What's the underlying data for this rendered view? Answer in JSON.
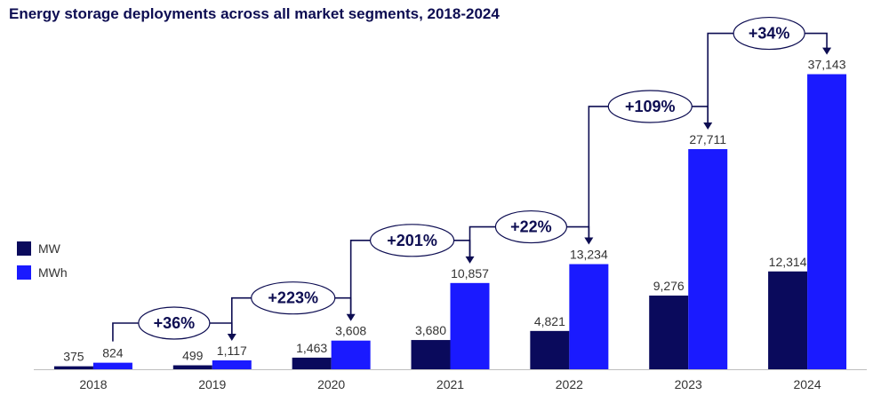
{
  "chart_data": {
    "type": "bar",
    "title": "Energy storage deployments across all market segments, 2018-2024",
    "categories": [
      "2018",
      "2019",
      "2020",
      "2021",
      "2022",
      "2023",
      "2024"
    ],
    "series": [
      {
        "name": "MW",
        "color": "#0a0a5c",
        "values": [
          375,
          499,
          1463,
          3680,
          4821,
          9276,
          12314
        ],
        "labels": [
          "375",
          "499",
          "1,463",
          "3,680",
          "4,821",
          "9,276",
          "12,314"
        ]
      },
      {
        "name": "MWh",
        "color": "#1a1aff",
        "values": [
          824,
          1117,
          3608,
          10857,
          13234,
          27711,
          37143
        ],
        "labels": [
          "824",
          "1,117",
          "3,608",
          "10,857",
          "13,234",
          "27,711",
          "37,143"
        ]
      }
    ],
    "ylim": [
      0,
      40000
    ],
    "annotations": [
      {
        "from": "2018",
        "to": "2019",
        "text": "+36%"
      },
      {
        "from": "2019",
        "to": "2020",
        "text": "+223%"
      },
      {
        "from": "2020",
        "to": "2021",
        "text": "+201%"
      },
      {
        "from": "2021",
        "to": "2022",
        "text": "+22%"
      },
      {
        "from": "2022",
        "to": "2023",
        "text": "+109%"
      },
      {
        "from": "2023",
        "to": "2024",
        "text": "+34%"
      }
    ],
    "legend_position": "left",
    "xlabel": "",
    "ylabel": ""
  }
}
